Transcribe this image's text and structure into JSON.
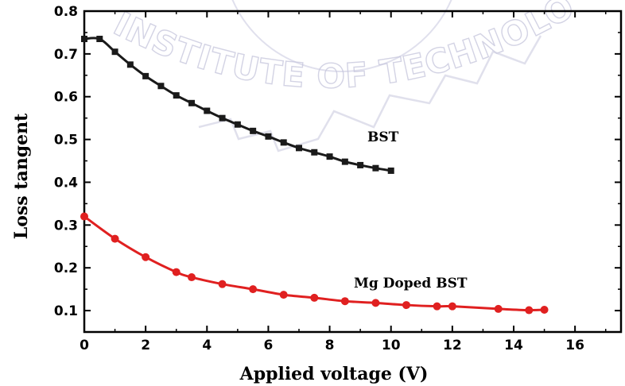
{
  "chart_data": {
    "type": "line",
    "xlabel": "Applied voltage (V)",
    "ylabel": "Loss tangent",
    "xlim": [
      0,
      17.5
    ],
    "ylim": [
      0.05,
      0.8
    ],
    "x_ticks": [
      "0",
      "2",
      "4",
      "6",
      "8",
      "10",
      "12",
      "14",
      "16"
    ],
    "y_ticks": [
      "0.1",
      "0.2",
      "0.3",
      "0.4",
      "0.5",
      "0.6",
      "0.7",
      "0.8"
    ],
    "x_tick_values": [
      0,
      2,
      4,
      6,
      8,
      10,
      12,
      14,
      16
    ],
    "y_tick_values": [
      0.1,
      0.2,
      0.3,
      0.4,
      0.5,
      0.6,
      0.7,
      0.8
    ],
    "grid": false,
    "series": [
      {
        "name": "BST",
        "color": "#1a1a1a",
        "marker": "square",
        "x": [
          0,
          0.5,
          1,
          1.5,
          2,
          2.5,
          3,
          3.5,
          4,
          4.5,
          5,
          5.5,
          6,
          6.5,
          7,
          7.5,
          8,
          8.5,
          9,
          9.5,
          10
        ],
        "y": [
          0.735,
          0.735,
          0.705,
          0.675,
          0.648,
          0.625,
          0.603,
          0.585,
          0.567,
          0.55,
          0.535,
          0.52,
          0.507,
          0.493,
          0.48,
          0.47,
          0.46,
          0.448,
          0.44,
          0.433,
          0.427
        ]
      },
      {
        "name": "Mg Doped BST",
        "color": "#e02020",
        "marker": "circle",
        "x": [
          0,
          1,
          2,
          3,
          3.5,
          4.5,
          5.5,
          6.5,
          7.5,
          8.5,
          9.5,
          10.5,
          11.5,
          12,
          13.5,
          14.5,
          15
        ],
        "y": [
          0.32,
          0.268,
          0.225,
          0.19,
          0.178,
          0.162,
          0.15,
          0.137,
          0.13,
          0.122,
          0.118,
          0.113,
          0.11,
          0.11,
          0.104,
          0.101,
          0.102
        ]
      }
    ]
  },
  "watermark": {
    "text": "INSTITUTE OF TECHNOLOGY RO"
  }
}
